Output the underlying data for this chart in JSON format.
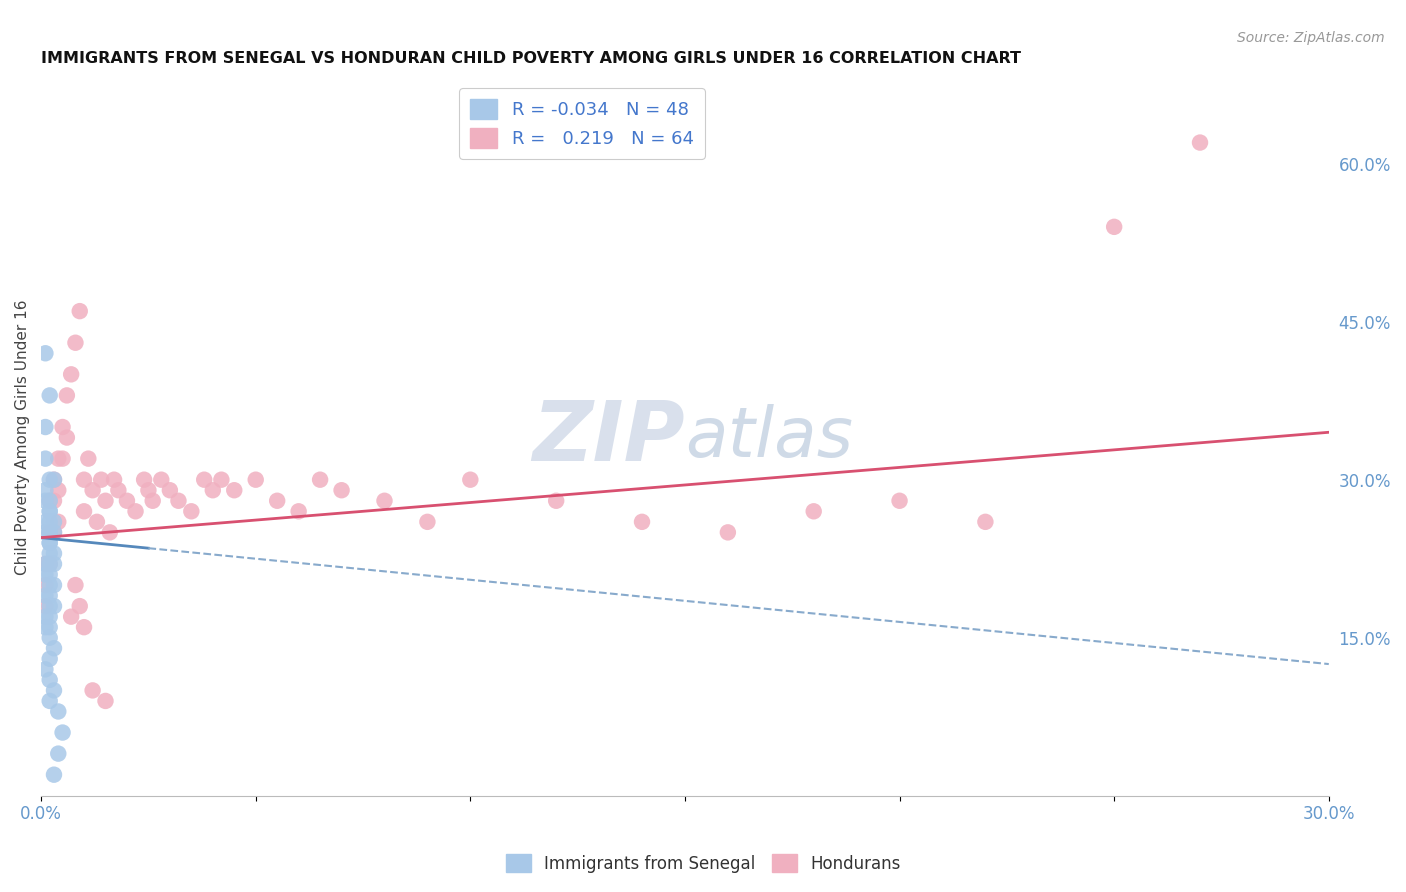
{
  "title": "IMMIGRANTS FROM SENEGAL VS HONDURAN CHILD POVERTY AMONG GIRLS UNDER 16 CORRELATION CHART",
  "source": "Source: ZipAtlas.com",
  "ylabel": "Child Poverty Among Girls Under 16",
  "xlim": [
    0.0,
    0.3
  ],
  "ylim": [
    0.0,
    0.68
  ],
  "xticks": [
    0.0,
    0.05,
    0.1,
    0.15,
    0.2,
    0.25,
    0.3
  ],
  "xticklabels": [
    "0.0%",
    "",
    "",
    "",
    "",
    "",
    "30.0%"
  ],
  "yticks_right": [
    0.15,
    0.3,
    0.45,
    0.6
  ],
  "ytick_right_labels": [
    "15.0%",
    "30.0%",
    "45.0%",
    "60.0%"
  ],
  "background_color": "#ffffff",
  "grid_color": "#d8d8e8",
  "blue_color": "#a8c8e8",
  "pink_color": "#f0b0c0",
  "blue_line_solid_color": "#5588bb",
  "blue_line_dash_color": "#88aacc",
  "pink_line_color": "#d85070",
  "senegal_x": [
    0.001,
    0.002,
    0.001,
    0.001,
    0.002,
    0.003,
    0.001,
    0.002,
    0.001,
    0.002,
    0.002,
    0.003,
    0.002,
    0.001,
    0.002,
    0.003,
    0.002,
    0.001,
    0.002,
    0.002,
    0.003,
    0.002,
    0.001,
    0.002,
    0.003,
    0.001,
    0.002,
    0.002,
    0.003,
    0.002,
    0.001,
    0.002,
    0.003,
    0.002,
    0.001,
    0.002,
    0.001,
    0.002,
    0.003,
    0.002,
    0.001,
    0.002,
    0.003,
    0.002,
    0.004,
    0.005,
    0.004,
    0.003
  ],
  "senegal_y": [
    0.42,
    0.38,
    0.35,
    0.32,
    0.3,
    0.3,
    0.29,
    0.28,
    0.28,
    0.27,
    0.27,
    0.26,
    0.26,
    0.26,
    0.25,
    0.25,
    0.25,
    0.25,
    0.24,
    0.24,
    0.23,
    0.23,
    0.22,
    0.22,
    0.22,
    0.21,
    0.21,
    0.2,
    0.2,
    0.19,
    0.19,
    0.18,
    0.18,
    0.17,
    0.17,
    0.16,
    0.16,
    0.15,
    0.14,
    0.13,
    0.12,
    0.11,
    0.1,
    0.09,
    0.08,
    0.06,
    0.04,
    0.02
  ],
  "honduran_x": [
    0.001,
    0.001,
    0.001,
    0.002,
    0.002,
    0.002,
    0.003,
    0.003,
    0.003,
    0.004,
    0.004,
    0.004,
    0.005,
    0.005,
    0.006,
    0.006,
    0.007,
    0.008,
    0.009,
    0.01,
    0.01,
    0.011,
    0.012,
    0.013,
    0.014,
    0.015,
    0.016,
    0.017,
    0.018,
    0.02,
    0.022,
    0.024,
    0.025,
    0.026,
    0.028,
    0.03,
    0.032,
    0.035,
    0.038,
    0.04,
    0.042,
    0.045,
    0.05,
    0.055,
    0.06,
    0.065,
    0.07,
    0.08,
    0.09,
    0.1,
    0.12,
    0.14,
    0.16,
    0.18,
    0.2,
    0.22,
    0.007,
    0.008,
    0.009,
    0.01,
    0.012,
    0.015,
    0.27,
    0.25
  ],
  "honduran_y": [
    0.22,
    0.2,
    0.18,
    0.28,
    0.25,
    0.22,
    0.3,
    0.28,
    0.25,
    0.32,
    0.29,
    0.26,
    0.35,
    0.32,
    0.38,
    0.34,
    0.4,
    0.43,
    0.46,
    0.3,
    0.27,
    0.32,
    0.29,
    0.26,
    0.3,
    0.28,
    0.25,
    0.3,
    0.29,
    0.28,
    0.27,
    0.3,
    0.29,
    0.28,
    0.3,
    0.29,
    0.28,
    0.27,
    0.3,
    0.29,
    0.3,
    0.29,
    0.3,
    0.28,
    0.27,
    0.3,
    0.29,
    0.28,
    0.26,
    0.3,
    0.28,
    0.26,
    0.25,
    0.27,
    0.28,
    0.26,
    0.17,
    0.2,
    0.18,
    0.16,
    0.1,
    0.09,
    0.62,
    0.54
  ],
  "blue_trend_x0": 0.0,
  "blue_trend_y0": 0.245,
  "blue_trend_x1": 0.3,
  "blue_trend_y1": 0.125,
  "pink_trend_x0": 0.0,
  "pink_trend_y0": 0.245,
  "pink_trend_x1": 0.3,
  "pink_trend_y1": 0.345
}
